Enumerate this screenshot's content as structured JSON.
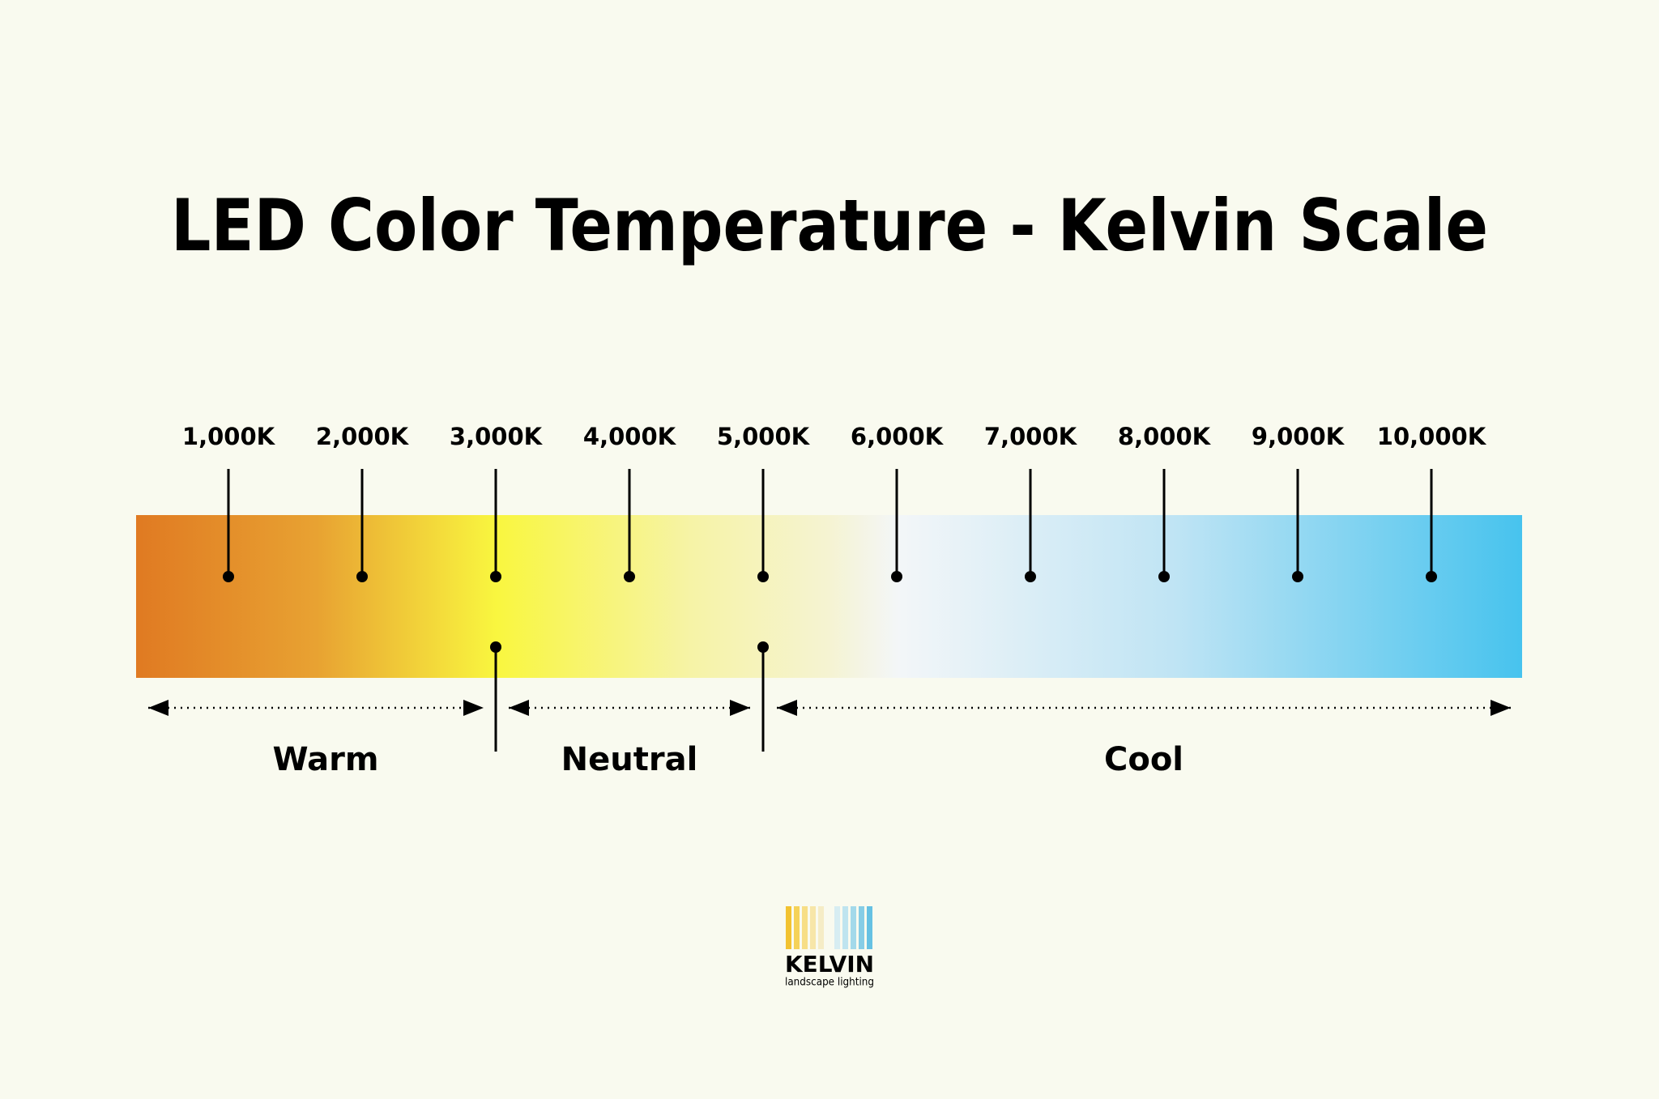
{
  "header": {
    "title": "LED Color Temperature - Kelvin Scale"
  },
  "scale": {
    "ticks": [
      "1,000K",
      "2,000K",
      "3,000K",
      "4,000K",
      "5,000K",
      "6,000K",
      "7,000K",
      "8,000K",
      "9,000K",
      "10,000K"
    ]
  },
  "ranges": [
    "Warm",
    "Neutral",
    "Cool"
  ],
  "logo": {
    "name": "KELVIN",
    "tagline": "landscape lighting"
  }
}
